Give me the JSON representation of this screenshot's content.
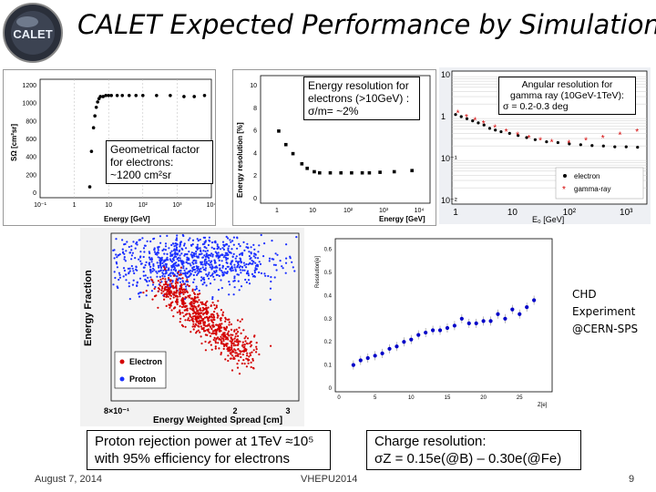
{
  "slide": {
    "title": "CALET Expected Performance by Simulations",
    "logo_text": "CALET",
    "colors": {
      "electron": "#d40000",
      "gamma": "#000000",
      "proton": "#1a2fff",
      "chd": "#0000c8"
    }
  },
  "plots": {
    "geom": {
      "ylabel": "SΩ [cm²sr]",
      "xlabel": "Energy [GeV]",
      "yticks": [
        "1200",
        "1000",
        "800",
        "600",
        "400",
        "200",
        "0"
      ],
      "xticks": [
        "10⁻¹",
        "1",
        "10",
        "10²",
        "10³",
        "10⁴"
      ],
      "note": [
        "Geometrical factor",
        "for electrons:",
        "~1200 cm²sr"
      ]
    },
    "eres": {
      "ylabel": "Energy resolution [%]",
      "xlabel": "Energy [GeV]",
      "yticks": [
        "10",
        "8",
        "6",
        "4",
        "2",
        "0"
      ],
      "xticks": [
        "1",
        "10",
        "10²",
        "10³",
        "10⁴"
      ],
      "note": [
        "Energy resolution for",
        "electrons (>10GeV) :",
        "σ/m= ~2%"
      ]
    },
    "ang": {
      "xlabel": "E₀ [GeV]",
      "yticks": [
        "10",
        "1",
        "10⁻¹",
        "10⁻²"
      ],
      "xticks": [
        "1",
        "10",
        "10²",
        "10³"
      ],
      "legend": [
        "electron",
        "gamma-ray"
      ],
      "note": [
        "Angular resolution for",
        "gamma ray (10GeV-1TeV):",
        "σ = 0.2-0.3 deg"
      ]
    },
    "rej": {
      "ylabel": "Energy Fraction",
      "xlabel": "Energy Weighted Spread [cm]",
      "xticks": [
        "8×10⁻¹",
        "2",
        "3"
      ],
      "legend": [
        "Electron",
        "Proton"
      ]
    },
    "charge": {
      "ylabel": "Resolution[e]",
      "xlabel": "Z[e]",
      "yticks": [
        "0.6",
        "0.5",
        "0.4",
        "0.3",
        "0.2",
        "0.1",
        "0"
      ],
      "xticks": [
        "0",
        "5",
        "10",
        "15",
        "20",
        "25"
      ]
    }
  },
  "chd_label": [
    "CHD",
    "Experiment",
    "@CERN-SPS"
  ],
  "captions": {
    "proton": [
      "Proton rejection power at 1TeV ≈10⁵",
      "with 95% efficiency for electrons"
    ],
    "charge": [
      "Charge resolution:",
      "σZ = 0.15e(@B) – 0.30e(@Fe)"
    ]
  },
  "footer": {
    "date": "August 7, 2014",
    "conf": "VHEPU2014",
    "page": "9"
  }
}
